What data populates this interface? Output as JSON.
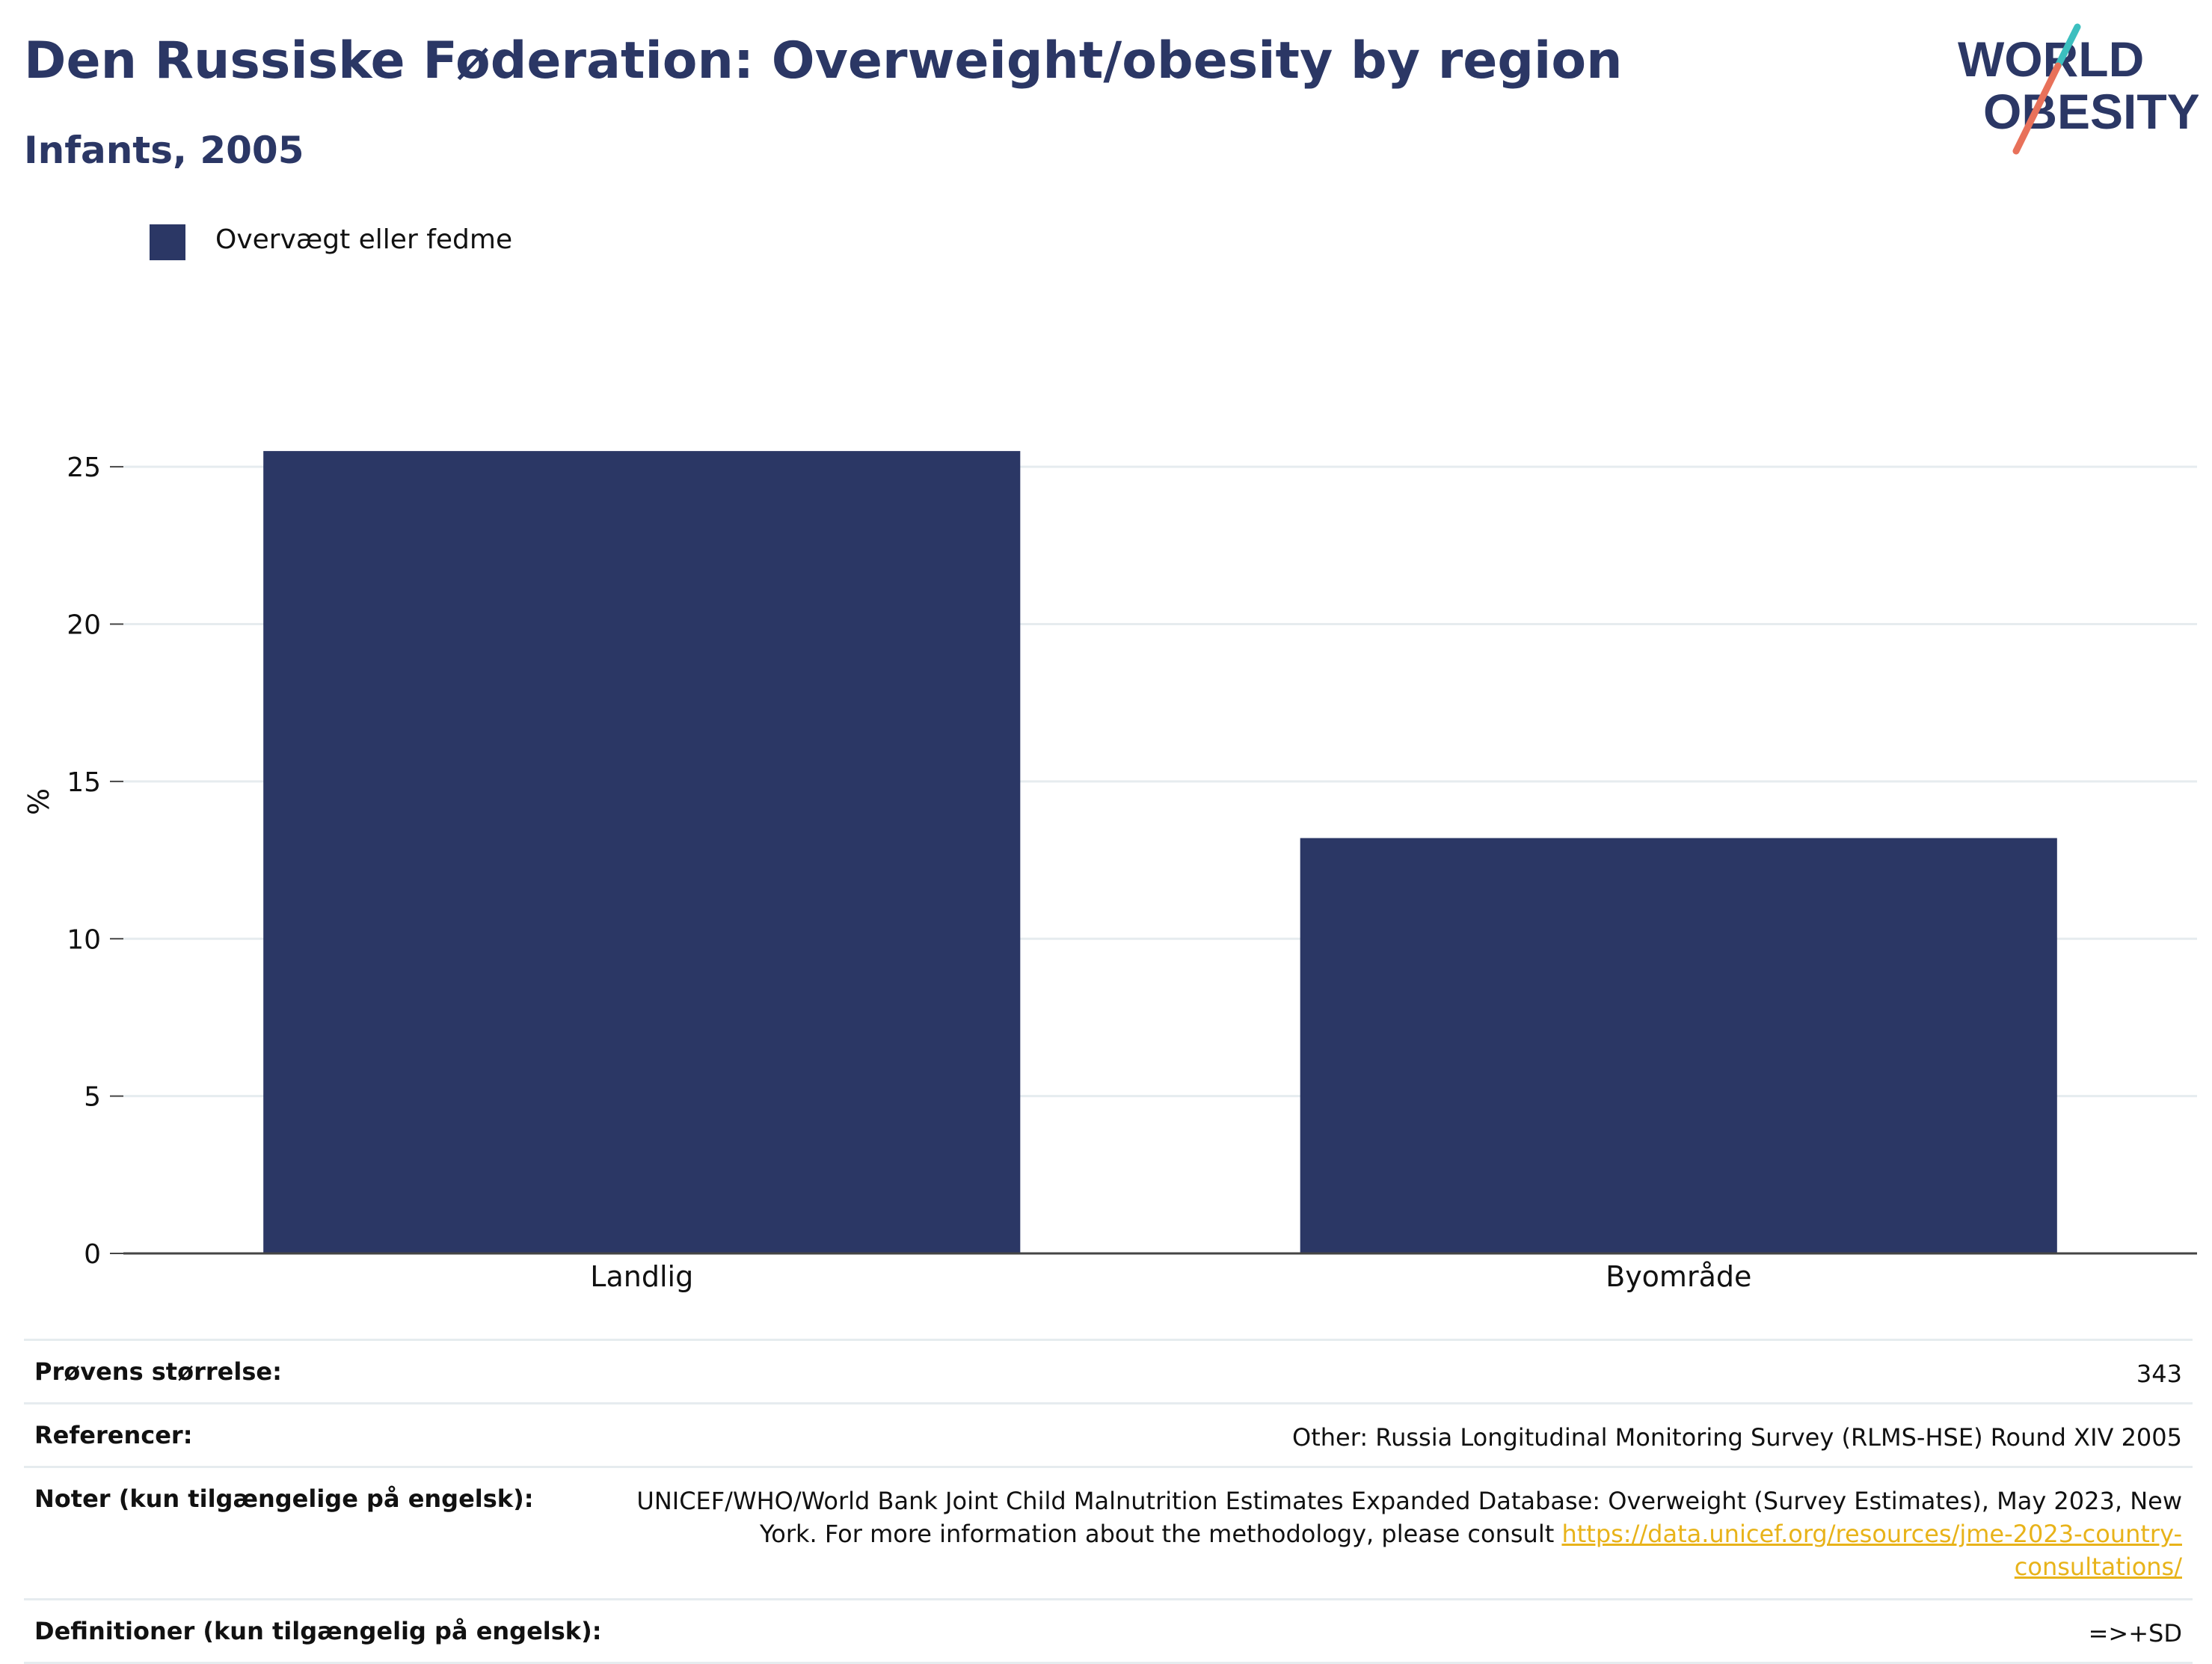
{
  "header": {
    "title": "Den Russiske Føderation: Overweight/obesity by region",
    "subtitle": "Infants, 2005",
    "logo": {
      "line1": "WORLD",
      "line2": "OBESITY"
    }
  },
  "legend": {
    "items": [
      {
        "label": "Overvægt eller fedme",
        "color": "#2b3765"
      }
    ]
  },
  "chart_data": {
    "type": "bar",
    "categories": [
      "Landlig",
      "Byområde"
    ],
    "series": [
      {
        "name": "Overvægt eller fedme",
        "values": [
          25.5,
          13.2
        ],
        "color": "#2b3765"
      }
    ],
    "ylabel": "%",
    "ylim": [
      0,
      27
    ],
    "yticks": [
      0,
      5,
      10,
      15,
      20,
      25
    ],
    "grid": true,
    "legend_position": "top-left"
  },
  "info_table": {
    "rows": [
      {
        "key": "Prøvens størrelse:",
        "value": "343"
      },
      {
        "key": "Referencer:",
        "value": "Other: Russia Longitudinal Monitoring Survey (RLMS-HSE) Round XIV 2005"
      },
      {
        "key": "Noter (kun tilgængelige på engelsk):",
        "value": "UNICEF/WHO/World Bank Joint Child Malnutrition Estimates Expanded Database: Overweight (Survey Estimates), May 2023, New York. For more information about the methodology, please consult ",
        "link": "https://data.unicef.org/resources/jme-2023-country-consultations/"
      },
      {
        "key": "Definitioner (kun tilgængelig på engelsk):",
        "value": "=>+SD"
      }
    ]
  },
  "colors": {
    "brand": "#2b3765",
    "logo_teal": "#3cbfbf",
    "logo_coral": "#e8715a",
    "link": "#e8b31a",
    "grid": "#e6ecef"
  }
}
